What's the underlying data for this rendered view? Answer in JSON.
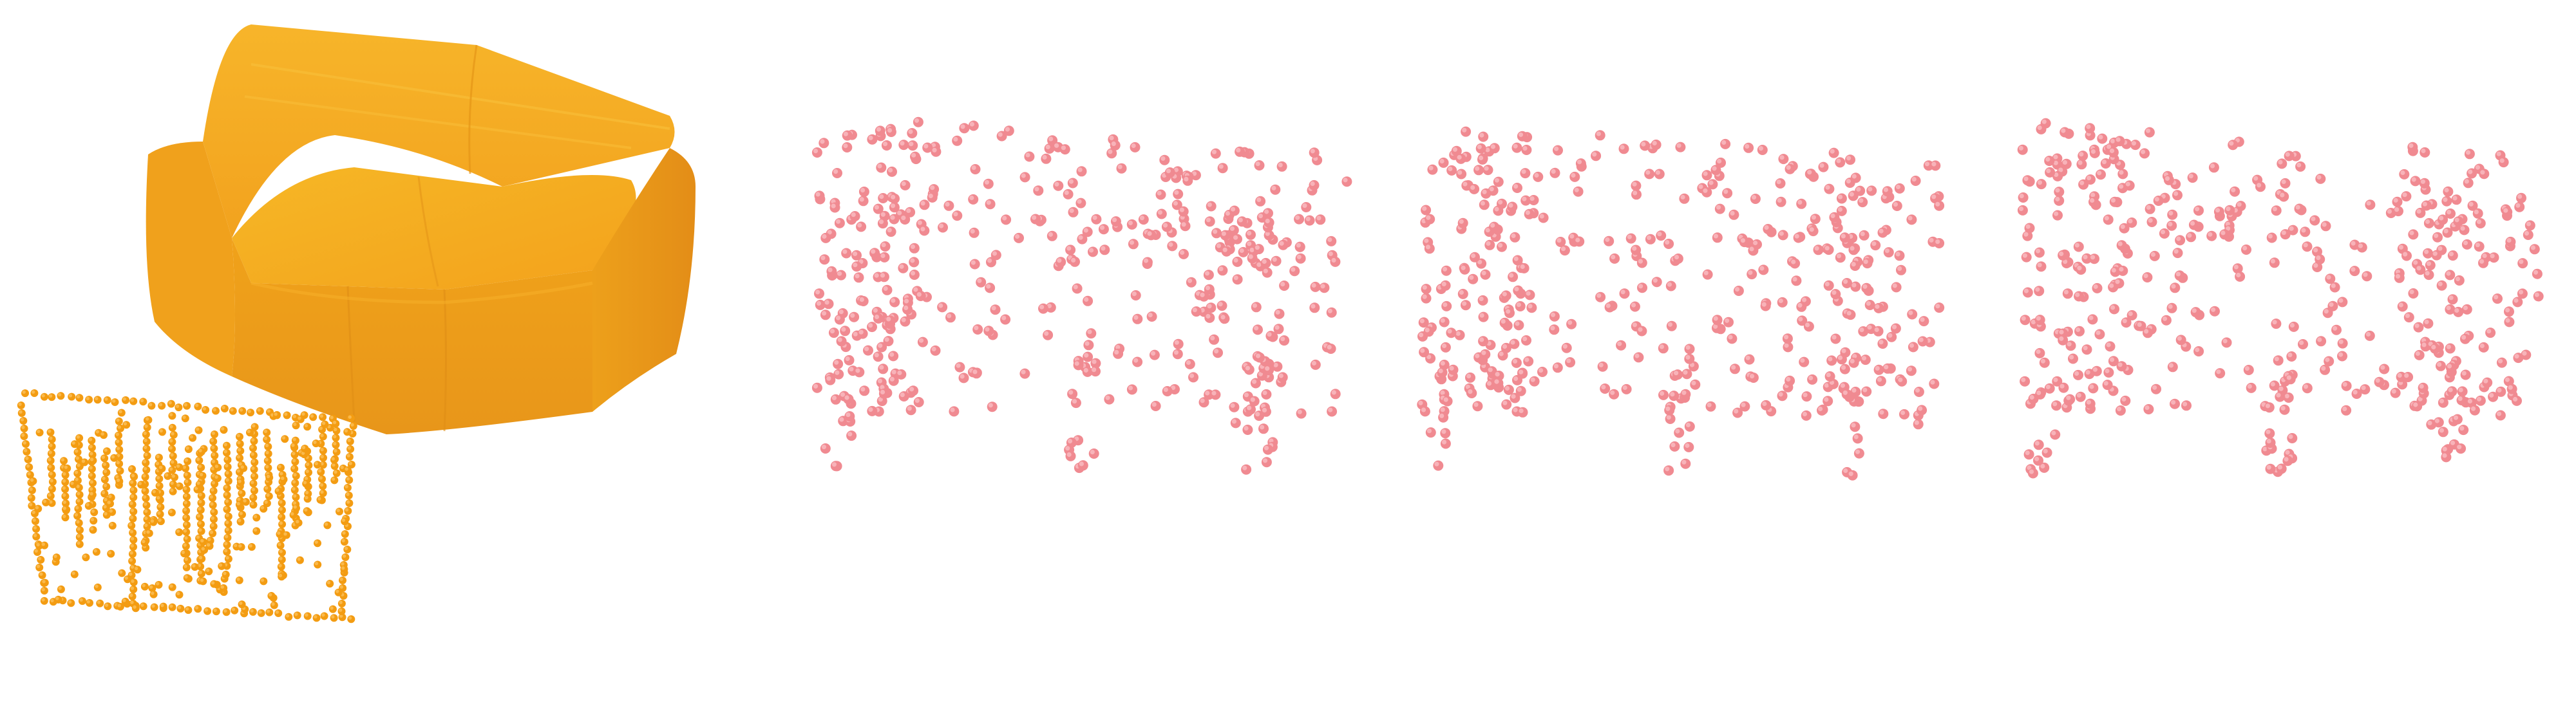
{
  "figure": {
    "background": "#ffffff",
    "panels": [
      {
        "id": "input-mesh",
        "kind": "sofa-mesh",
        "color": "#f2a51c"
      },
      {
        "id": "input-point-cloud",
        "kind": "point-cloud-structured",
        "color": "#f39c12",
        "seed": 11
      },
      {
        "id": "generated-point-cloud-1",
        "kind": "point-cloud-sparse",
        "color": "#f08a91",
        "seed": 23
      },
      {
        "id": "generated-point-cloud-2",
        "kind": "point-cloud-sparse",
        "color": "#f08a91",
        "seed": 37
      },
      {
        "id": "generated-point-cloud-3",
        "kind": "point-cloud-sparse",
        "color": "#f08a91",
        "seed": 51
      }
    ]
  }
}
